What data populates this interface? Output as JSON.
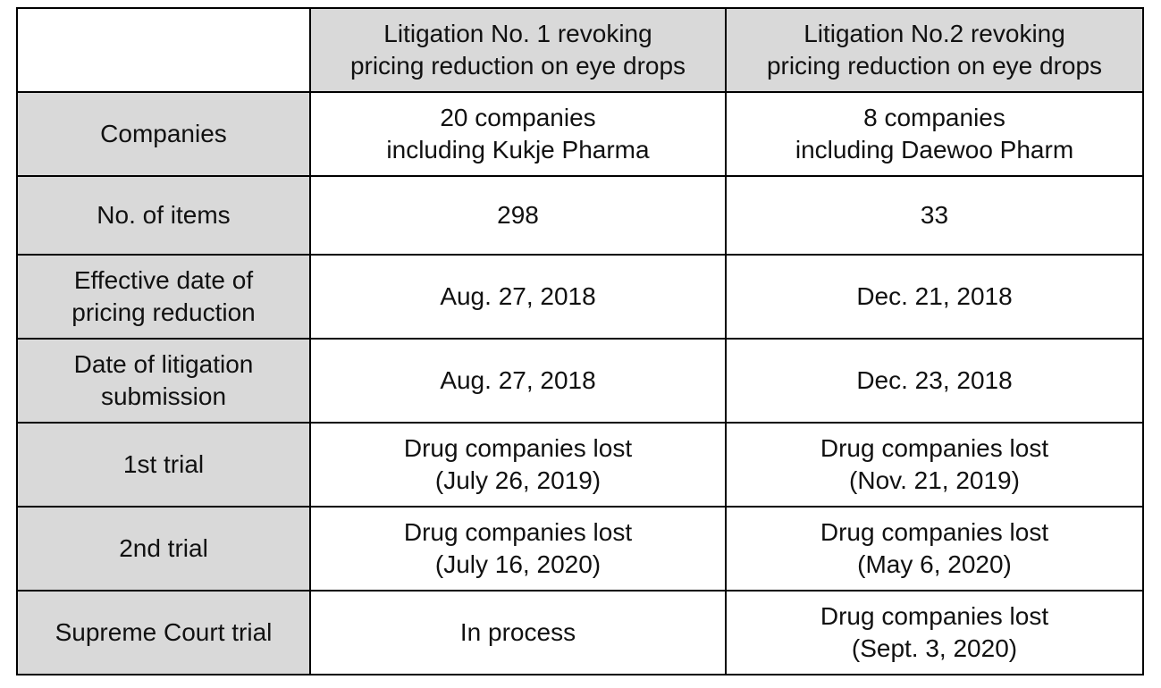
{
  "table": {
    "header": [
      [
        "Litigation No. 1 revoking",
        "pricing reduction on eye drops"
      ],
      [
        "Litigation No.2 revoking",
        "pricing reduction on eye drops"
      ]
    ],
    "rows": [
      {
        "label": [
          "Companies"
        ],
        "cells": [
          [
            "20 companies",
            "including Kukje Pharma"
          ],
          [
            "8 companies",
            "including Daewoo Pharm"
          ]
        ]
      },
      {
        "label": [
          "No. of items"
        ],
        "cells": [
          [
            "298"
          ],
          [
            "33"
          ]
        ]
      },
      {
        "label": [
          "Effective date of",
          "pricing reduction"
        ],
        "cells": [
          [
            "Aug. 27, 2018"
          ],
          [
            "Dec. 21, 2018"
          ]
        ]
      },
      {
        "label": [
          "Date of litigation",
          "submission"
        ],
        "cells": [
          [
            "Aug. 27, 2018"
          ],
          [
            "Dec. 23, 2018"
          ]
        ]
      },
      {
        "label": [
          "1st trial"
        ],
        "cells": [
          [
            "Drug companies lost",
            "(July 26, 2019)"
          ],
          [
            "Drug companies lost",
            "(Nov. 21, 2019)"
          ]
        ]
      },
      {
        "label": [
          "2nd trial"
        ],
        "cells": [
          [
            "Drug companies lost",
            "(July 16, 2020)"
          ],
          [
            "Drug companies lost",
            "(May 6, 2020)"
          ]
        ]
      },
      {
        "label": [
          "Supreme Court trial"
        ],
        "cells": [
          [
            "In process"
          ],
          [
            "Drug companies lost",
            "(Sept. 3, 2020)"
          ]
        ]
      }
    ]
  }
}
